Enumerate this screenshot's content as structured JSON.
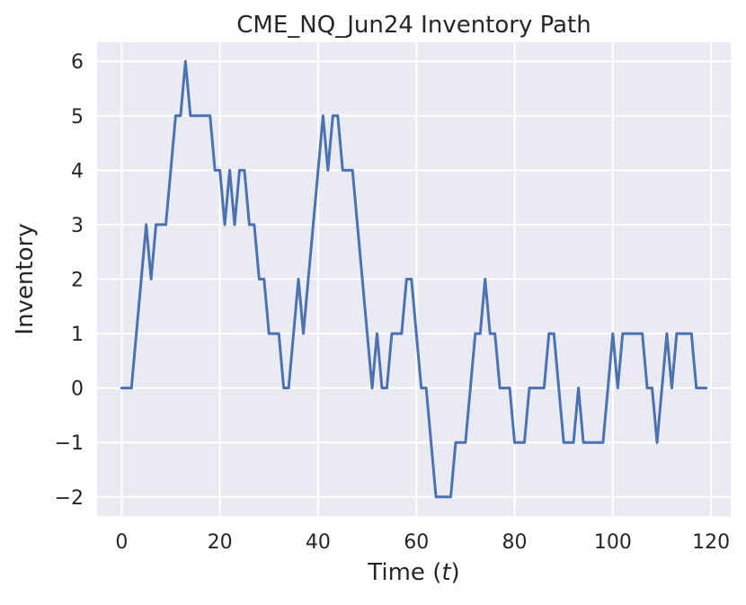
{
  "chart_data": {
    "type": "line",
    "title": "CME_NQ_Jun24 Inventory Path",
    "xlabel_prefix": "Time (",
    "xlabel_var": "t",
    "xlabel_suffix": ")",
    "ylabel": "Inventory",
    "xlim": [
      -5,
      124
    ],
    "ylim": [
      -2.35,
      6.35
    ],
    "xticks": [
      0,
      20,
      40,
      60,
      80,
      100,
      120
    ],
    "xtick_labels": [
      "0",
      "20",
      "40",
      "60",
      "80",
      "100",
      "120"
    ],
    "yticks": [
      -2,
      -1,
      0,
      1,
      2,
      3,
      4,
      5,
      6
    ],
    "ytick_labels": [
      "−2",
      "−1",
      "0",
      "1",
      "2",
      "3",
      "4",
      "5",
      "6"
    ],
    "grid": true,
    "colors": {
      "line": "#4c72b0",
      "background": "#eaeaf2",
      "grid": "#ffffff"
    },
    "series": [
      {
        "x": [
          0,
          1,
          2,
          3,
          4,
          5,
          6,
          7,
          8,
          9,
          10,
          11,
          12,
          13,
          14,
          15,
          16,
          17,
          18,
          19,
          20,
          21,
          22,
          23,
          24,
          25,
          26,
          27,
          28,
          29,
          30,
          31,
          32,
          33,
          34,
          35,
          36,
          37,
          38,
          39,
          40,
          41,
          42,
          43,
          44,
          45,
          46,
          47,
          48,
          49,
          50,
          51,
          52,
          53,
          54,
          55,
          56,
          57,
          58,
          59,
          60,
          61,
          62,
          63,
          64,
          65,
          66,
          67,
          68,
          69,
          70,
          71,
          72,
          73,
          74,
          75,
          76,
          77,
          78,
          79,
          80,
          81,
          82,
          83,
          84,
          85,
          86,
          87,
          88,
          89,
          90,
          91,
          92,
          93,
          94,
          95,
          96,
          97,
          98,
          99,
          100,
          101,
          102,
          103,
          104,
          105,
          106,
          107,
          108,
          109,
          110,
          111,
          112,
          113,
          114,
          115,
          116,
          117,
          118,
          119
        ],
        "values": [
          0,
          0,
          0,
          1,
          2,
          3,
          2,
          3,
          3,
          3,
          4,
          5,
          5,
          6,
          5,
          5,
          5,
          5,
          5,
          4,
          4,
          3,
          4,
          3,
          4,
          4,
          3,
          3,
          2,
          2,
          1,
          1,
          1,
          0,
          0,
          1,
          2,
          1,
          2,
          3,
          4,
          5,
          4,
          5,
          5,
          4,
          4,
          4,
          3,
          2,
          1,
          0,
          1,
          0,
          0,
          1,
          1,
          1,
          2,
          2,
          1,
          0,
          0,
          -1,
          -2,
          -2,
          -2,
          -2,
          -1,
          -1,
          -1,
          0,
          1,
          1,
          2,
          1,
          1,
          0,
          0,
          0,
          -1,
          -1,
          -1,
          0,
          0,
          0,
          0,
          1,
          1,
          0,
          -1,
          -1,
          -1,
          0,
          -1,
          -1,
          -1,
          -1,
          -1,
          0,
          1,
          0,
          1,
          1,
          1,
          1,
          1,
          0,
          0,
          -1,
          0,
          1,
          0,
          1,
          1,
          1,
          1,
          0,
          0,
          0
        ]
      }
    ]
  }
}
